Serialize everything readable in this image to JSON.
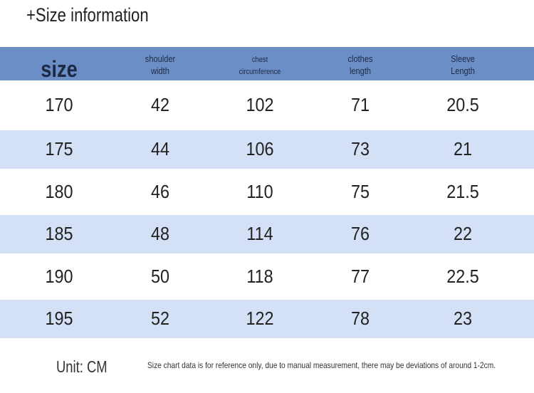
{
  "header": {
    "title": "+Size information"
  },
  "table": {
    "columns": [
      [
        "size"
      ],
      [
        "shoulder",
        "width"
      ],
      [
        "chest",
        "circumference"
      ],
      [
        "clothes",
        "length"
      ],
      [
        "Sleeve",
        "Length"
      ]
    ],
    "rows": [
      [
        170,
        42,
        102,
        71,
        20.5
      ],
      [
        175,
        44,
        106,
        73,
        21
      ],
      [
        180,
        46,
        110,
        75,
        21.5
      ],
      [
        185,
        48,
        114,
        76,
        22
      ],
      [
        190,
        50,
        118,
        77,
        22.5
      ],
      [
        195,
        52,
        122,
        78,
        23
      ]
    ]
  },
  "footer": {
    "unit": "Unit: CM",
    "note": "Size chart data is for reference only, due to manual measurement, there may be deviations of around 1-2cm."
  }
}
